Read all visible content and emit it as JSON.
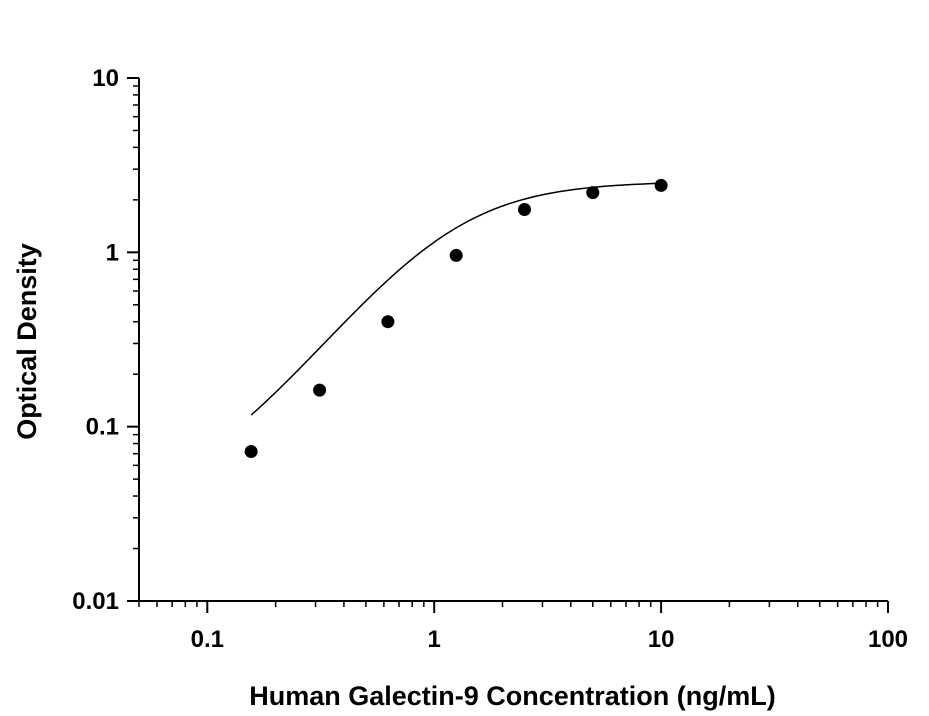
{
  "chart_data": {
    "type": "scatter",
    "title": "",
    "xlabel": "Human Galectin-9 Concentration (ng/mL)",
    "ylabel": "Optical Density",
    "x_scale": "log",
    "y_scale": "log",
    "xlim": [
      0.05,
      100
    ],
    "ylim": [
      0.01,
      10
    ],
    "x_ticks": [
      {
        "value": 0.1,
        "label": "0.1"
      },
      {
        "value": 1,
        "label": "1"
      },
      {
        "value": 10,
        "label": "10"
      },
      {
        "value": 100,
        "label": "100"
      }
    ],
    "y_ticks": [
      {
        "value": 0.01,
        "label": "0.01"
      },
      {
        "value": 0.1,
        "label": "0.1"
      },
      {
        "value": 1,
        "label": "1"
      },
      {
        "value": 10,
        "label": "10"
      }
    ],
    "grid": false,
    "legend": "none",
    "series": [
      {
        "name": "",
        "x": [
          0.156,
          0.3125,
          0.625,
          1.25,
          2.5,
          5,
          10
        ],
        "y": [
          0.072,
          0.162,
          0.4,
          0.96,
          1.76,
          2.2,
          2.42
        ],
        "marker": "circle",
        "color": "#000000",
        "fit": "4PL"
      }
    ],
    "fit_curve": {
      "bottom": 0.035,
      "top": 2.55,
      "ec50": 1.15,
      "hill": 1.7,
      "color": "#000000"
    }
  }
}
